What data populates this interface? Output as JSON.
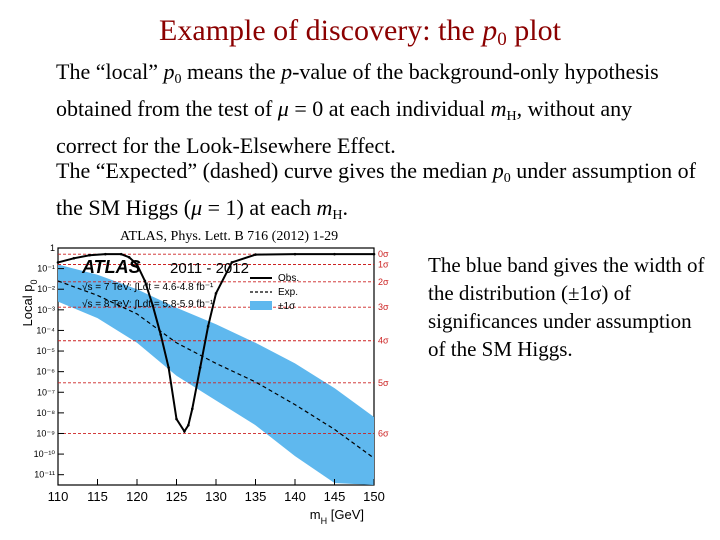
{
  "slide": {
    "title_pre": "Example of discovery:  the ",
    "title_var": "p",
    "title_sub": "0",
    "title_post": " plot"
  },
  "paragraph1": {
    "a": "The “local” ",
    "p": "p",
    "sub0": "0",
    "b": " means the ",
    "p2": "p",
    "c": "-value of the background-only hypothesis obtained from the test of ",
    "mu": "μ",
    "d": " = 0 at each individual ",
    "m": "m",
    "subH": "H",
    "e": ", without any correct for the Look-Elsewhere Effect."
  },
  "paragraph2": {
    "a": "The “Expected” (dashed) curve gives the median ",
    "p": "p",
    "sub0": "0",
    "b": " under assumption of the SM Higgs (",
    "mu": "μ",
    "c": " = 1) at each ",
    "m": "m",
    "subH": "H",
    "d": "."
  },
  "citation": "ATLAS, Phys. Lett. B 716 (2012) 1-29",
  "side_text": "The blue band gives the width of the distribution (±1σ) of significances under assumption of the SM Higgs.",
  "colors": {
    "title": "#8b0000",
    "band": "#5fb8ee",
    "sigma_lines": "#cc2222",
    "observed": "#000000"
  },
  "chart_data": {
    "type": "line",
    "xlabel": "m_H [GeV]",
    "ylabel": "Local p_0",
    "logo": "ATLAS",
    "years": "2011 - 2012",
    "lumi_lines": [
      "√s = 7 TeV: ∫Ldt = 4.6-4.8 fb⁻¹",
      "√s = 8 TeV: ∫Ldt = 5.8-5.9 fb⁻¹"
    ],
    "legend": [
      "Obs.",
      "Exp.",
      "±1σ"
    ],
    "xlim": [
      110,
      150
    ],
    "xticks": [
      "110",
      "115",
      "120",
      "125",
      "130",
      "135",
      "140",
      "145",
      "150"
    ],
    "yticks": [
      "1",
      "10⁻¹",
      "10⁻²",
      "10⁻³",
      "10⁻⁴",
      "10⁻⁵",
      "10⁻⁶",
      "10⁻⁷",
      "10⁻⁸",
      "10⁻⁹",
      "10⁻¹⁰",
      "10⁻¹¹"
    ],
    "ylim_log10": [
      -11.5,
      0
    ],
    "sigma_labels": [
      "0σ",
      "1σ",
      "2σ",
      "3σ",
      "4σ",
      "5σ",
      "6σ"
    ],
    "sigma_log10": [
      -0.301,
      -0.801,
      -1.64,
      -2.87,
      -4.5,
      -6.54,
      -9.0
    ],
    "observed": {
      "x": [
        110,
        112,
        114,
        116,
        118,
        119,
        120,
        121,
        122,
        123,
        124,
        125,
        126,
        126.5,
        127,
        128,
        129,
        130,
        132,
        135,
        140,
        145,
        150
      ],
      "y_log10": [
        -0.7,
        -0.5,
        -0.35,
        -0.3,
        -0.3,
        -0.45,
        -0.8,
        -1.6,
        -2.8,
        -4.2,
        -5.8,
        -8.3,
        -8.9,
        -8.6,
        -7.8,
        -5.8,
        -3.8,
        -2.2,
        -0.7,
        -0.32,
        -0.3,
        -0.3,
        -0.3
      ]
    },
    "expected": {
      "x": [
        110,
        115,
        120,
        125,
        130,
        135,
        140,
        145,
        150
      ],
      "y_log10": [
        -1.6,
        -2.3,
        -3.2,
        -4.6,
        -5.6,
        -6.5,
        -7.6,
        -8.8,
        -10.2
      ]
    },
    "band_upper": {
      "x": [
        110,
        115,
        120,
        125,
        130,
        135,
        140,
        145,
        150
      ],
      "y_log10": [
        -0.8,
        -1.3,
        -2.0,
        -2.9,
        -3.7,
        -4.6,
        -5.6,
        -6.8,
        -8.2
      ]
    },
    "band_lower": {
      "x": [
        110,
        115,
        120,
        125,
        130,
        135,
        140,
        145,
        150
      ],
      "y_log10": [
        -2.6,
        -3.4,
        -4.6,
        -6.2,
        -7.4,
        -8.6,
        -10.1,
        -11.4,
        -11.5
      ]
    }
  }
}
